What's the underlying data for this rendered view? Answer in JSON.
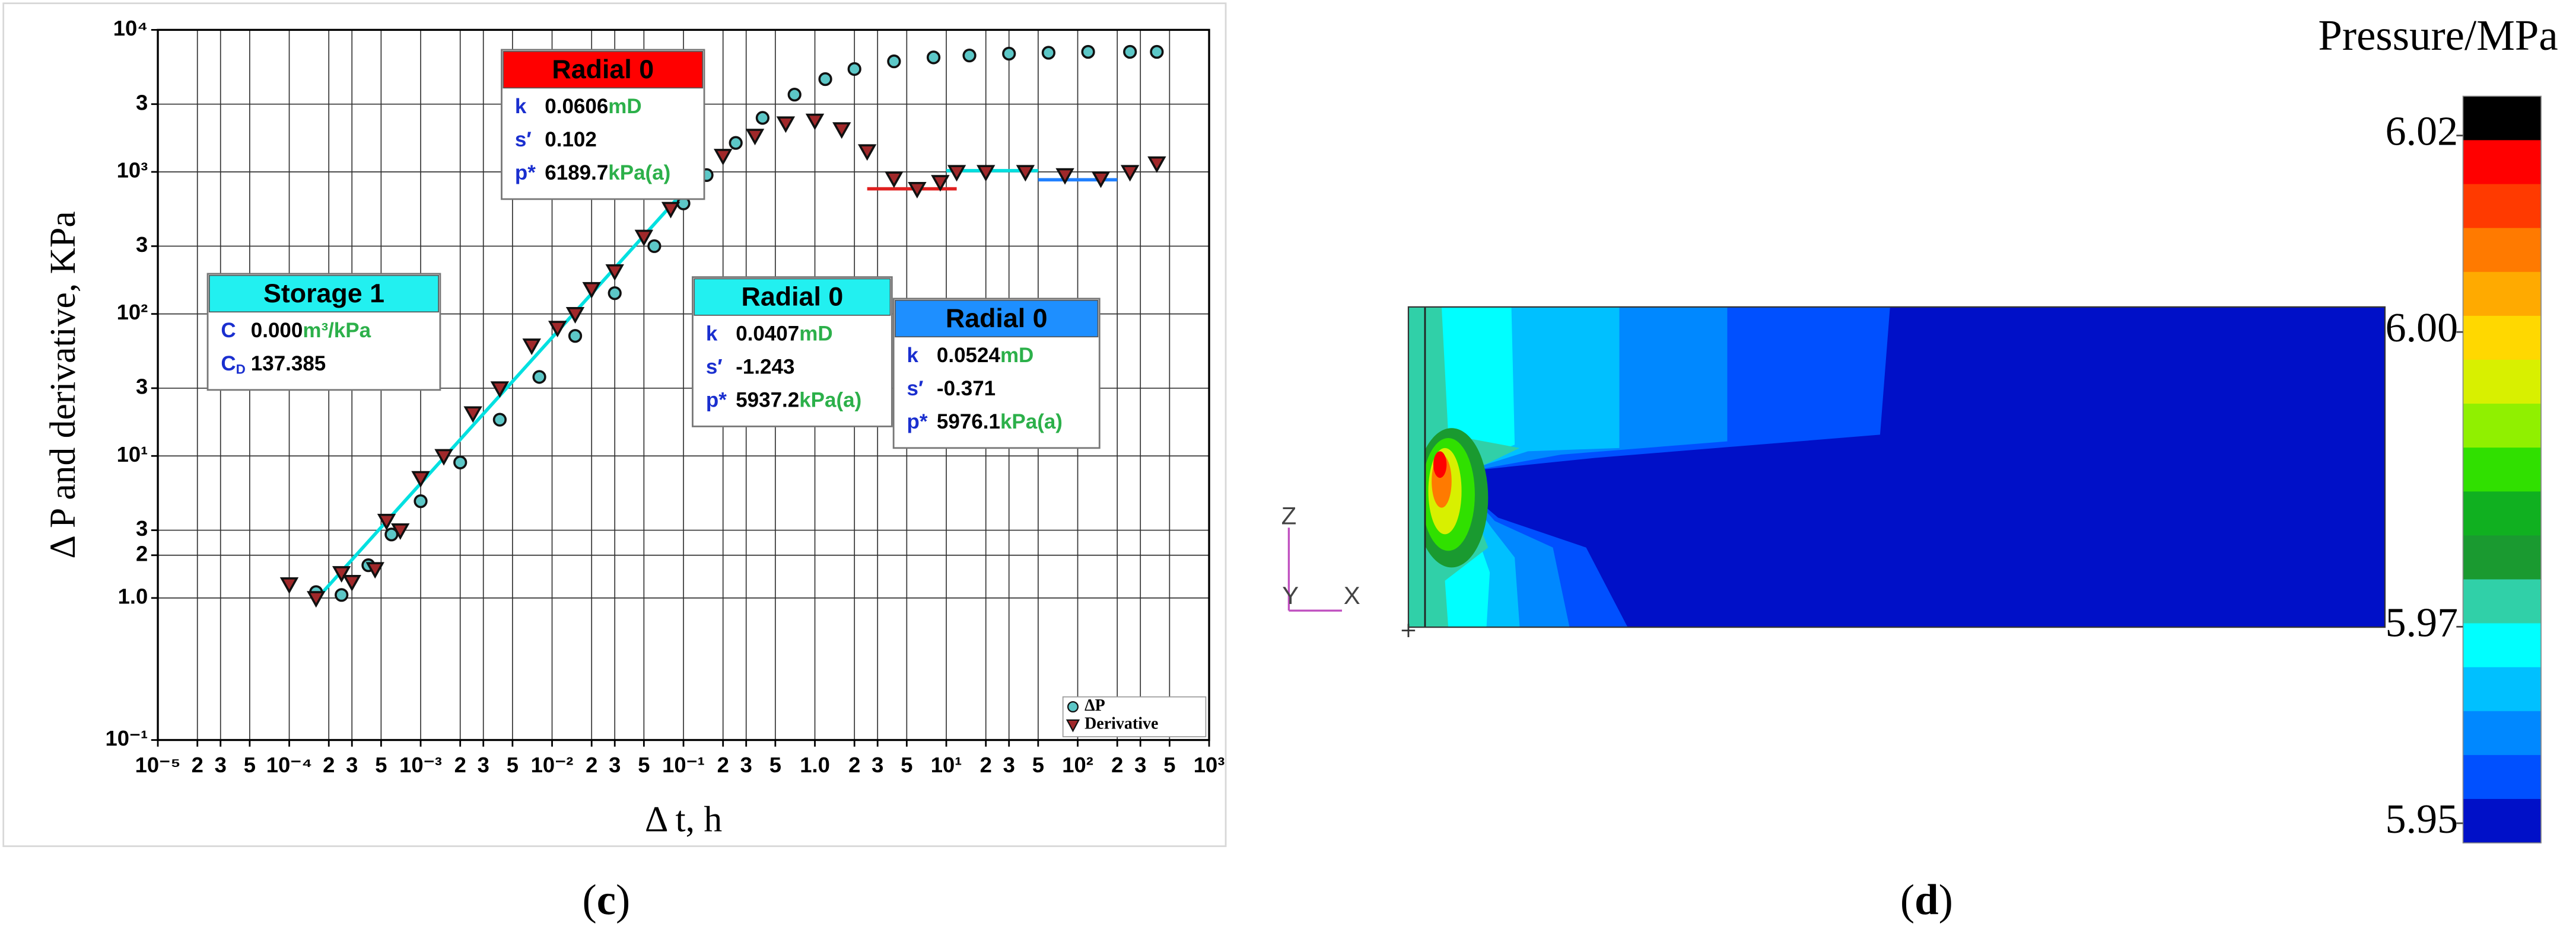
{
  "chart_data": [
    {
      "type": "scatter",
      "xlabel": "Δ t, h",
      "ylabel": "Δ P and derivative, KPa",
      "xscale": "log",
      "yscale": "log",
      "grid": true,
      "xlim": [
        1e-05,
        1000
      ],
      "ylim": [
        0.1,
        10000
      ],
      "xticks": [
        {
          "value": 1e-05,
          "label": "10⁻⁵"
        },
        {
          "value": 2e-05,
          "label": "2"
        },
        {
          "value": 3e-05,
          "label": "3"
        },
        {
          "value": 5e-05,
          "label": "5"
        },
        {
          "value": 0.0001,
          "label": "10⁻⁴"
        },
        {
          "value": 0.0002,
          "label": "2"
        },
        {
          "value": 0.0003,
          "label": "3"
        },
        {
          "value": 0.0005,
          "label": "5"
        },
        {
          "value": 0.001,
          "label": "10⁻³"
        },
        {
          "value": 0.002,
          "label": "2"
        },
        {
          "value": 0.003,
          "label": "3"
        },
        {
          "value": 0.005,
          "label": "5"
        },
        {
          "value": 0.01,
          "label": "10⁻²"
        },
        {
          "value": 0.02,
          "label": "2"
        },
        {
          "value": 0.03,
          "label": "3"
        },
        {
          "value": 0.05,
          "label": "5"
        },
        {
          "value": 0.1,
          "label": "10⁻¹"
        },
        {
          "value": 0.2,
          "label": "2"
        },
        {
          "value": 0.3,
          "label": "3"
        },
        {
          "value": 0.5,
          "label": "5"
        },
        {
          "value": 1,
          "label": "1.0"
        },
        2,
        3,
        5,
        {
          "value": 10,
          "label": "10¹"
        },
        {
          "value": 20,
          "label": "2"
        },
        {
          "value": 30,
          "label": "3"
        },
        {
          "value": 50,
          "label": "5"
        },
        {
          "value": 100,
          "label": "10²"
        },
        {
          "value": 200,
          "label": "2"
        },
        {
          "value": 300,
          "label": "3"
        },
        {
          "value": 500,
          "label": "5"
        },
        {
          "value": 1000,
          "label": "10³"
        }
      ],
      "yticks": [
        {
          "value": 10000,
          "label": "10⁴"
        },
        {
          "value": 3000,
          "label": "3"
        },
        {
          "value": 1000,
          "label": "10³"
        },
        {
          "value": 300,
          "label": "3"
        },
        {
          "value": 100,
          "label": "10²"
        },
        {
          "value": 30,
          "label": "3"
        },
        {
          "value": 10,
          "label": "10¹"
        },
        3,
        {
          "value": 1,
          "label": "1.0"
        },
        2,
        {
          "value": 0.1,
          "label": "10⁻¹"
        }
      ],
      "legend": "lower right",
      "series": [
        {
          "name": "ΔP",
          "color": "#5cc7c7",
          "marker": "circle",
          "x": [
            0.00016,
            0.00025,
            0.0004,
            0.0006,
            0.001,
            0.002,
            0.004,
            0.008,
            0.015,
            0.03,
            0.06,
            0.1,
            0.15,
            0.25,
            0.4,
            0.7,
            1.2,
            2,
            4,
            8,
            15,
            30,
            60,
            120,
            250,
            400
          ],
          "values": [
            1.1,
            1.05,
            1.7,
            2.8,
            4.8,
            9,
            18,
            36,
            70,
            140,
            300,
            600,
            950,
            1600,
            2400,
            3500,
            4500,
            5300,
            6000,
            6400,
            6600,
            6800,
            6900,
            7000,
            7000,
            7000
          ]
        },
        {
          "name": "Derivative",
          "color": "#a0282a",
          "marker": "triangle",
          "x": [
            0.0001,
            0.00016,
            0.00025,
            0.0003,
            0.00045,
            0.00055,
            0.0007,
            0.001,
            0.0015,
            0.0025,
            0.004,
            0.007,
            0.011,
            0.015,
            0.02,
            0.03,
            0.05,
            0.08,
            0.12,
            0.2,
            0.35,
            0.6,
            1,
            1.6,
            2.5,
            4,
            6,
            9,
            12,
            20,
            40,
            80,
            150,
            250,
            400
          ],
          "values": [
            1.25,
            1,
            1.5,
            1.3,
            1.6,
            3.5,
            3,
            7,
            10,
            20,
            30,
            60,
            80,
            100,
            150,
            200,
            350,
            550,
            850,
            1300,
            1800,
            2200,
            2300,
            2000,
            1400,
            900,
            760,
            850,
            1000,
            1000,
            1000,
            950,
            900,
            1000,
            1150
          ]
        }
      ],
      "fit_lines": [
        {
          "color": "#00e0e0",
          "x": [
            0.00018,
            0.13
          ],
          "values": [
            1.1,
            950
          ]
        },
        {
          "color": "#e02020",
          "x": [
            2.5,
            12
          ],
          "values": [
            760,
            760
          ]
        },
        {
          "color": "#00e0e0",
          "x": [
            10,
            50
          ],
          "values": [
            1020,
            1020
          ]
        },
        {
          "color": "#2080ff",
          "x": [
            50,
            200
          ],
          "values": [
            880,
            880
          ]
        }
      ],
      "annotations": [
        {
          "title": "Radial 0",
          "color": "#ff0000",
          "rows": [
            {
              "label": "k",
              "value": "0.0606",
              "unit": "mD"
            },
            {
              "label": "s′",
              "value": "0.102"
            },
            {
              "label": "p*",
              "value": "6189.7",
              "unit": "kPa(a)"
            }
          ]
        },
        {
          "title": "Storage 1",
          "color": "#22f0f0",
          "rows": [
            {
              "label": "C",
              "value": "0.000",
              "unit": "m³/kPa"
            },
            {
              "label": "C",
              "sub": "D",
              "value": "137.385"
            }
          ]
        },
        {
          "title": "Radial 0",
          "color": "#22f0f0",
          "rows": [
            {
              "label": "k",
              "value": "0.0407",
              "unit": "mD"
            },
            {
              "label": "s′",
              "value": "-1.243"
            },
            {
              "label": "p*",
              "value": "5937.2",
              "unit": "kPa(a)"
            }
          ]
        },
        {
          "title": "Radial 0",
          "color": "#1e8fff",
          "rows": [
            {
              "label": "k",
              "value": "0.0524",
              "unit": "mD"
            },
            {
              "label": "s′",
              "value": "-0.371"
            },
            {
              "label": "p*",
              "value": "5976.1",
              "unit": "kPa(a)"
            }
          ]
        }
      ]
    },
    {
      "type": "contour",
      "axis_triad": [
        "Z",
        "Y",
        "X"
      ],
      "colorbar": {
        "title": "Pressure/MPa",
        "clim": [
          5.948,
          6.024
        ],
        "ticks": [
          6.02,
          {
            "value": 6,
            "label": "6.00"
          },
          5.97,
          5.95
        ],
        "colors": [
          "#000000",
          "#ff0000",
          "#ff3a00",
          "#ff7a00",
          "#ffaa00",
          "#ffd800",
          "#d8f000",
          "#90f000",
          "#30e000",
          "#10b020",
          "#1a9a30",
          "#30d0a8",
          "#00ffff",
          "#00c0ff",
          "#0088ff",
          "#0050ff",
          "#0010c8"
        ]
      }
    }
  ],
  "captions": [
    "c",
    "d"
  ]
}
